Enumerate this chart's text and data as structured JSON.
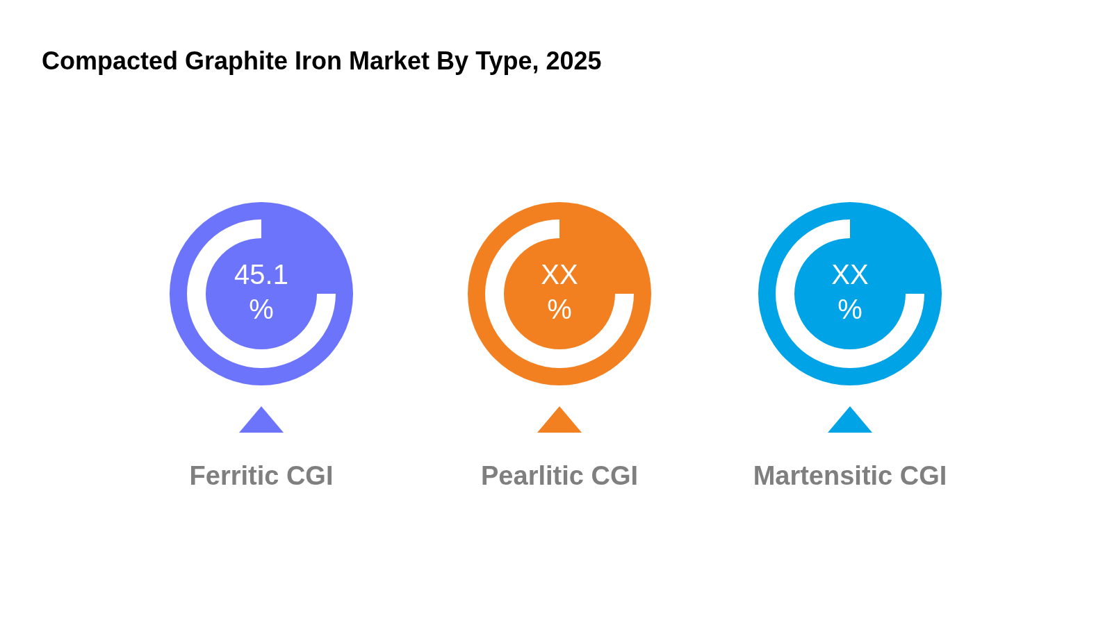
{
  "chart_data": {
    "type": "other",
    "title": "Compacted Graphite Iron Market By Type, 2025",
    "categories": [
      "Ferritic CGI",
      "Pearlitic CGI",
      "Martensitic CGI"
    ],
    "values": [
      45.1,
      null,
      null
    ],
    "value_labels": [
      "45.1 %",
      "XX %",
      "XX %"
    ],
    "colors": [
      "#6b74fb",
      "#f38020",
      "#00a3e6"
    ]
  }
}
